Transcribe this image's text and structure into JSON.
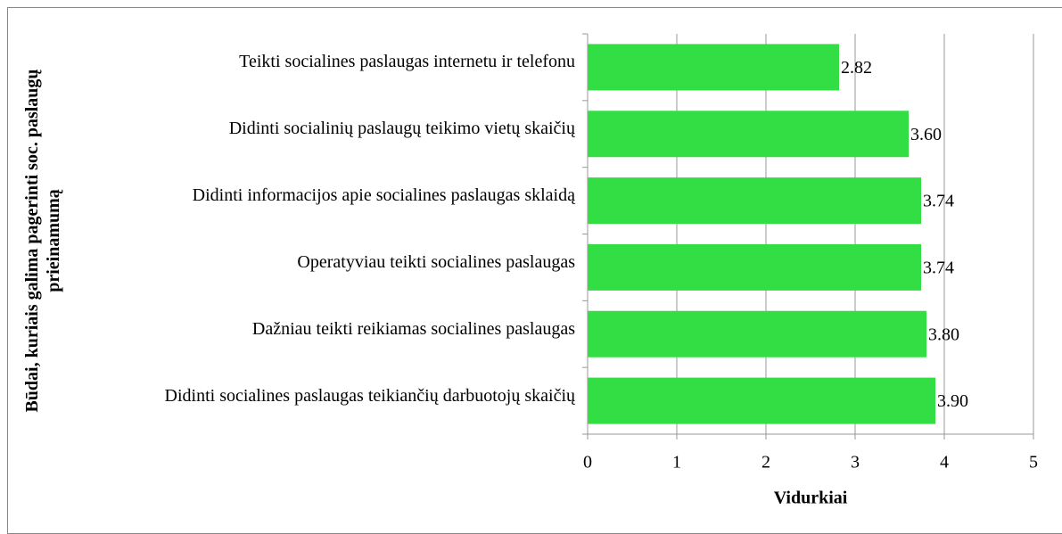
{
  "chart_data": {
    "type": "bar",
    "orientation": "horizontal",
    "ylabel": "Būdai, kuriais galima pagerinti soc. paslaugų prieinamumą",
    "xlabel": "Vidurkiai",
    "categories": [
      "Teikti socialines paslaugas internetu ir telefonu",
      "Didinti socialinių paslaugų teikimo vietų skaičių",
      "Didinti informacijos apie socialines paslaugas sklaidą",
      "Operatyviau teikti socialines paslaugas",
      "Dažniau teikti reikiamas socialines paslaugas",
      "Didinti socialines paslaugas teikiančių darbuotojų skaičių"
    ],
    "values": [
      2.82,
      3.6,
      3.74,
      3.74,
      3.8,
      3.9
    ],
    "value_labels": [
      "2.82",
      "3.60",
      "3.74",
      "3.74",
      "3.80",
      "3.90"
    ],
    "color": "#33dd44",
    "xlim": [
      0,
      5
    ],
    "xticks": [
      0,
      1,
      2,
      3,
      4,
      5
    ],
    "grid": true
  }
}
